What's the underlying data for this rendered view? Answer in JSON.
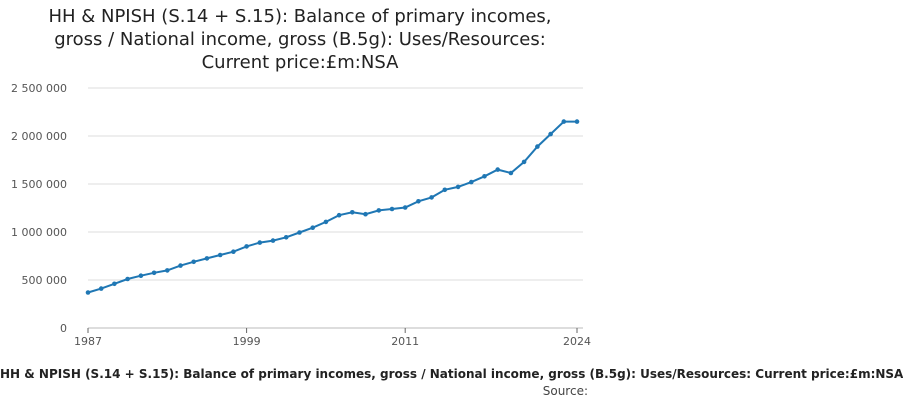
{
  "chart_data": {
    "type": "line",
    "title_lines": [
      "HH & NPISH (S.14 + S.15): Balance of primary incomes,",
      "gross / National income, gross (B.5g): Uses/Resources:",
      "Current price:£m:NSA"
    ],
    "xlabel": "",
    "ylabel": "",
    "xlim": [
      1987,
      2024
    ],
    "ylim": [
      0,
      2500000
    ],
    "y_ticks": [
      0,
      500000,
      1000000,
      1500000,
      2000000,
      2500000
    ],
    "y_tick_labels": [
      "0",
      "500 000",
      "1 000 000",
      "1 500 000",
      "2 000 000",
      "2 500 000"
    ],
    "x_ticks": [
      1987,
      1999,
      2011,
      2024
    ],
    "x_tick_labels": [
      "1987",
      "1999",
      "2011",
      "2024"
    ],
    "grid": "horizontal",
    "series": [
      {
        "name": "HH & NPISH (S.14 + S.15): Balance of primary incomes, gross / National income, gross (B.5g): Uses/Resources: Current price:£m:NSA",
        "color": "#1f77b4",
        "x": [
          1987,
          1988,
          1989,
          1990,
          1991,
          1992,
          1993,
          1994,
          1995,
          1996,
          1997,
          1998,
          1999,
          2000,
          2001,
          2002,
          2003,
          2004,
          2005,
          2006,
          2007,
          2008,
          2009,
          2010,
          2011,
          2012,
          2013,
          2014,
          2015,
          2016,
          2017,
          2018,
          2019,
          2020,
          2021,
          2022,
          2023,
          2024
        ],
        "y": [
          370000,
          410000,
          460000,
          510000,
          545000,
          575000,
          600000,
          650000,
          690000,
          725000,
          760000,
          795000,
          850000,
          890000,
          910000,
          945000,
          995000,
          1045000,
          1105000,
          1175000,
          1205000,
          1185000,
          1225000,
          1240000,
          1255000,
          1320000,
          1360000,
          1440000,
          1470000,
          1520000,
          1580000,
          1650000,
          1615000,
          1730000,
          1890000,
          2020000,
          2150000,
          2150000
        ]
      }
    ]
  },
  "legend_text": "HH & NPISH (S.14 + S.15): Balance of primary incomes, gross / National income, gross (B.5g): Uses/Resources: Current price:£m:NSA",
  "source_label": "Source:",
  "colors": {
    "series": "#1f77b4",
    "grid": "#dddddd",
    "axis": "#666666"
  }
}
